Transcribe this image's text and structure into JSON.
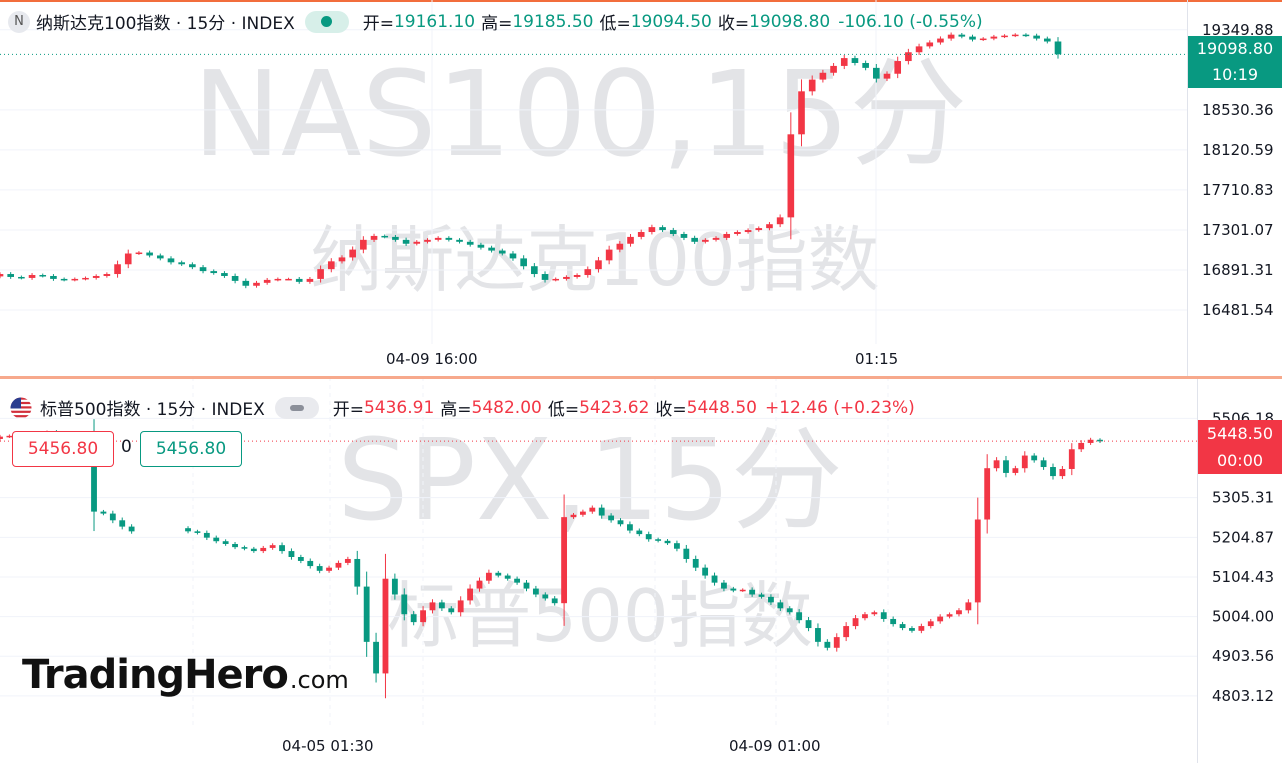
{
  "colors": {
    "up": "#f23645",
    "down": "#089981",
    "grid": "#f0f3fa",
    "axis_text": "#131722",
    "watermark": "#e3e4e7"
  },
  "top": {
    "badge": "N",
    "title": "纳斯达克100指数 · 15分 · INDEX",
    "watermark_main": "NAS100,15分",
    "watermark_sub": "纳斯达克100指数",
    "open_label": "开=",
    "open": "19161.10",
    "high_label": "高=",
    "high": "19185.50",
    "low_label": "低=",
    "low": "19094.50",
    "close_label": "收=",
    "close": "19098.80",
    "change": "-106.10 (-0.55%)",
    "last_price": "19098.80",
    "countdown": "10:19",
    "price_ticks": [
      "19349.88",
      "18530.36",
      "18120.59",
      "17710.83",
      "17301.07",
      "16891.31",
      "16481.54"
    ],
    "time_labels": [
      "04-09 16:00",
      "01:15"
    ]
  },
  "bottom": {
    "title": "标普500指数 · 15分 · INDEX",
    "watermark_main": "SPX,15分",
    "watermark_sub": "标普500指数",
    "open_label": "开=",
    "open": "5436.91",
    "high_label": "高=",
    "high": "5482.00",
    "low_label": "低=",
    "low": "5423.62",
    "close_label": "收=",
    "close": "5448.50",
    "change": "+12.46 (+0.23%)",
    "last_price": "5448.50",
    "countdown": "00:00",
    "box_left": "5456.80",
    "box_zero": "0",
    "box_right": "5456.80",
    "price_ticks": [
      "5506.18",
      "5305.31",
      "5204.87",
      "5104.43",
      "5004.00",
      "4903.56",
      "4803.12"
    ],
    "time_labels": [
      "04-05 01:30",
      "04-09 01:00"
    ]
  },
  "logo": {
    "main": "TradingHero",
    "domain": ".com"
  },
  "chart_data": [
    {
      "type": "candlestick",
      "title": "纳斯达克100指数 · 15分 · INDEX",
      "ylim": [
        16400,
        19450
      ],
      "y_ticks": [
        19349.88,
        18530.36,
        18120.59,
        17710.83,
        17301.07,
        16891.31,
        16481.54
      ],
      "x_tick_labels": [
        "04-09 16:00",
        "01:15"
      ],
      "last_value": 19098.8,
      "closes": [
        16850,
        16820,
        16810,
        16840,
        16830,
        16800,
        16790,
        16800,
        16810,
        16830,
        16850,
        16950,
        17060,
        17070,
        17040,
        17010,
        16970,
        16950,
        16920,
        16880,
        16860,
        16830,
        16780,
        16730,
        16760,
        16790,
        16800,
        16800,
        16770,
        16800,
        16900,
        16980,
        17020,
        17100,
        17200,
        17240,
        17230,
        17200,
        17160,
        17180,
        17200,
        17220,
        17200,
        17180,
        17150,
        17120,
        17090,
        17060,
        17010,
        16930,
        16850,
        16790,
        16800,
        16820,
        16840,
        16900,
        16990,
        17100,
        17160,
        17230,
        17280,
        17330,
        17300,
        17260,
        17220,
        17180,
        17200,
        17220,
        17260,
        17280,
        17300,
        17320,
        17360,
        17430,
        18280,
        18720,
        18840,
        18910,
        18980,
        19060,
        19010,
        18960,
        18850,
        18900,
        19030,
        19120,
        19180,
        19220,
        19260,
        19300,
        19280,
        19250,
        19260,
        19280,
        19290,
        19300,
        19290,
        19260,
        19230,
        19099
      ]
    },
    {
      "type": "candlestick",
      "title": "标普500指数 · 15分 · INDEX",
      "ylim": [
        4780,
        5530
      ],
      "y_ticks": [
        5506.18,
        5305.31,
        5204.87,
        5104.43,
        5004.0,
        4903.56,
        4803.12
      ],
      "x_tick_labels": [
        "04-05 01:30",
        "04-09 01:00"
      ],
      "last_value": 5448.5,
      "closes": [
        5460,
        5462,
        5465,
        5468,
        5470,
        5472,
        5466,
        5462,
        5458,
        5455,
        5270,
        5265,
        5248,
        5232,
        5220,
        5214,
        5210,
        5230,
        5236,
        5228,
        5220,
        5216,
        5204,
        5195,
        5188,
        5180,
        5176,
        5170,
        5178,
        5185,
        5170,
        5155,
        5145,
        5132,
        5120,
        5128,
        5140,
        5150,
        5080,
        4940,
        4860,
        5100,
        5060,
        5010,
        4990,
        5020,
        5040,
        5025,
        5015,
        5045,
        5075,
        5095,
        5115,
        5108,
        5100,
        5090,
        5075,
        5060,
        5050,
        5038,
        5256,
        5262,
        5270,
        5280,
        5260,
        5248,
        5238,
        5222,
        5213,
        5200,
        5196,
        5190,
        5176,
        5150,
        5128,
        5108,
        5090,
        5075,
        5070,
        5072,
        5060,
        5054,
        5040,
        5025,
        5015,
        4995,
        4975,
        4940,
        4925,
        4952,
        4980,
        5000,
        5010,
        5015,
        4998,
        4985,
        4975,
        4968,
        4980,
        4992,
        5004,
        5010,
        5020,
        5040,
        5250,
        5380,
        5400,
        5368,
        5380,
        5412,
        5400,
        5383,
        5360,
        5378,
        5428,
        5444,
        5452,
        5448
      ]
    }
  ]
}
